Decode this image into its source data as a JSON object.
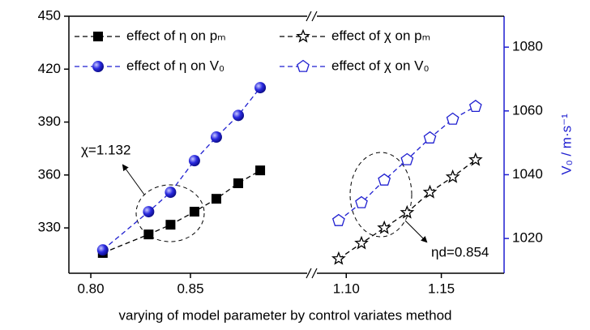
{
  "chart_data": {
    "type": "line",
    "xlabel": "varying of model parameter by control variates method",
    "y2label": "V₀ / m·s⁻¹",
    "xlim": [
      0.789,
      1.183
    ],
    "xbreak": [
      0.911,
      1.082
    ],
    "xticks": [
      {
        "value": 0.8,
        "label": "0.80"
      },
      {
        "value": 0.85,
        "label": "0.85"
      },
      {
        "value": 1.1,
        "label": "1.10"
      },
      {
        "value": 1.15,
        "label": "1.15"
      }
    ],
    "ylim": [
      304.3,
      450
    ],
    "yticks": [
      330,
      360,
      390,
      420,
      450
    ],
    "y2lim": [
      1009.1,
      1089.7
    ],
    "y2ticks": [
      1020,
      1040,
      1060,
      1080
    ],
    "y2color": "#1f1fd0",
    "series": [
      {
        "name": "effect of η on pₘ",
        "color": "#000000",
        "marker": "square",
        "axis": "y",
        "x": [
          0.806,
          0.829,
          0.84,
          0.852,
          0.863,
          0.874,
          0.885
        ],
        "values": [
          315.8,
          326.3,
          331.8,
          339.2,
          346.5,
          355.3,
          362.6
        ]
      },
      {
        "name": "effect of η on V₀",
        "color": "#1f1fd0",
        "marker": "sphere",
        "axis": "y2",
        "x": [
          0.806,
          0.829,
          0.84,
          0.852,
          0.863,
          0.874,
          0.885
        ],
        "values": [
          1016.4,
          1028.4,
          1034.5,
          1044.4,
          1051.8,
          1058.6,
          1067.3
        ]
      },
      {
        "name": "effect of χ on pₘ",
        "color": "#000000",
        "marker": "star",
        "axis": "y",
        "x": [
          1.096,
          1.108,
          1.12,
          1.132,
          1.144,
          1.156,
          1.168
        ],
        "values": [
          312.5,
          321.3,
          330.0,
          338.7,
          350.2,
          358.9,
          368.6
        ]
      },
      {
        "name": "effect of χ on V₀",
        "color": "#1f1fd0",
        "marker": "pentagon",
        "axis": "y2",
        "x": [
          1.096,
          1.108,
          1.12,
          1.132,
          1.144,
          1.156,
          1.168
        ],
        "values": [
          1025.6,
          1031.2,
          1038.3,
          1044.7,
          1051.5,
          1057.4,
          1061.4
        ]
      }
    ],
    "annotations": [
      "χ=1.132",
      "ηd=0.854"
    ]
  }
}
